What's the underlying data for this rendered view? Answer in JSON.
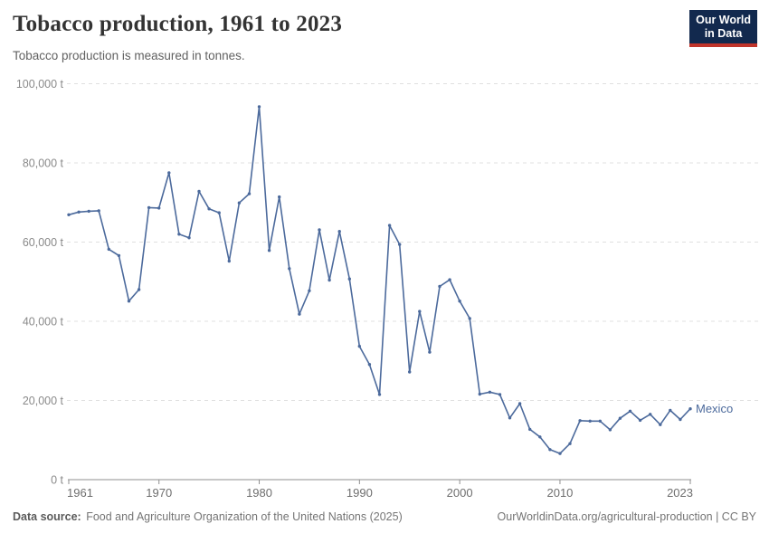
{
  "header": {
    "title": "Tobacco production, 1961 to 2023",
    "subtitle": "Tobacco production is measured in tonnes.",
    "logo": {
      "line1": "Our World",
      "line2": "in Data",
      "bg_color": "#12294e",
      "accent_color": "#c0342b"
    }
  },
  "chart_data": {
    "type": "line",
    "title": "Tobacco production, 1961 to 2023",
    "unit": "tonnes",
    "xlabel": "",
    "ylabel": "",
    "xlim": [
      1961,
      2023
    ],
    "ylim": [
      0,
      100000
    ],
    "x_ticks": [
      1961,
      1970,
      1980,
      1990,
      2000,
      2010,
      2023
    ],
    "y_ticks": [
      0,
      20000,
      40000,
      60000,
      80000,
      100000
    ],
    "y_tick_labels": [
      "0 t",
      "20,000 t",
      "40,000 t",
      "60,000 t",
      "80,000 t",
      "100,000 t"
    ],
    "grid": "horizontal-dashed",
    "legend": "end-of-line-label",
    "grid_color": "#e0e0e0",
    "axis_color": "#8f8f8f",
    "y_label_color": "#8a8a8a",
    "x_label_color": "#6e6e6e",
    "series": [
      {
        "name": "Mexico",
        "color": "#4c6a9c",
        "x": [
          1961,
          1962,
          1963,
          1964,
          1965,
          1966,
          1967,
          1968,
          1969,
          1970,
          1971,
          1972,
          1973,
          1974,
          1975,
          1976,
          1977,
          1978,
          1979,
          1980,
          1981,
          1982,
          1983,
          1984,
          1985,
          1986,
          1987,
          1988,
          1989,
          1990,
          1991,
          1992,
          1993,
          1994,
          1995,
          1996,
          1997,
          1998,
          1999,
          2000,
          2001,
          2002,
          2003,
          2004,
          2005,
          2006,
          2007,
          2008,
          2009,
          2010,
          2011,
          2012,
          2013,
          2014,
          2015,
          2016,
          2017,
          2018,
          2019,
          2020,
          2021,
          2022,
          2023
        ],
        "values": [
          66900,
          67600,
          67800,
          67900,
          58200,
          56600,
          45100,
          48000,
          68700,
          68600,
          77500,
          62000,
          61100,
          72800,
          68400,
          67400,
          55200,
          69900,
          72200,
          94200,
          57900,
          71400,
          53300,
          41800,
          47700,
          63100,
          50400,
          62700,
          50700,
          33700,
          29100,
          21500,
          64200,
          59400,
          27200,
          42500,
          32200,
          48800,
          50500,
          45100,
          40700,
          21600,
          22100,
          21500,
          15600,
          19200,
          12700,
          10800,
          7600,
          6600,
          9100,
          14900,
          14800,
          14800,
          12600,
          15500,
          17300,
          15000,
          16500,
          13900,
          17500,
          15200,
          17900
        ]
      }
    ]
  },
  "footer": {
    "source_label": "Data source:",
    "source": "Food and Agriculture Organization of the United Nations (2025)",
    "credit": "OurWorldinData.org/agricultural-production | CC BY"
  }
}
